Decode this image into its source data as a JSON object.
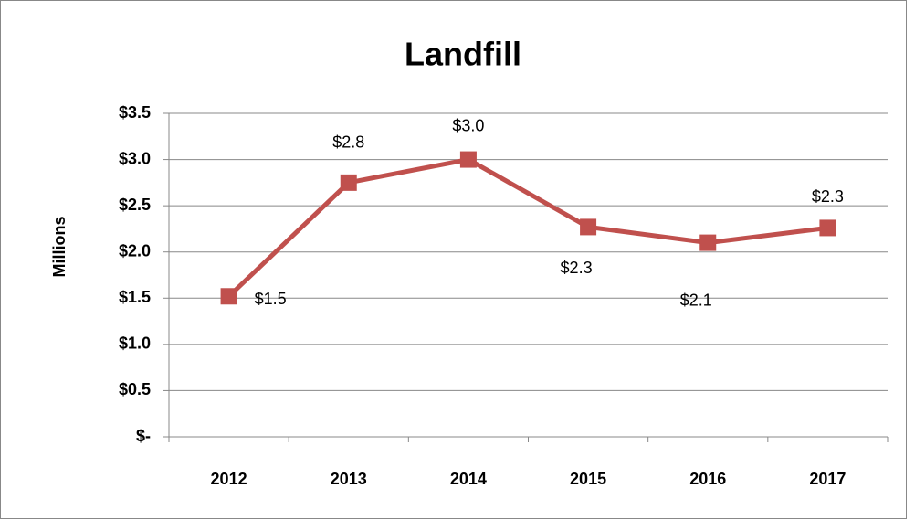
{
  "chart_data": {
    "type": "line",
    "title": "Landfill",
    "y_label": "Millions",
    "categories": [
      "2012",
      "2013",
      "2014",
      "2015",
      "2016",
      "2017"
    ],
    "series": [
      {
        "name": "Landfill",
        "color": "#c0504d",
        "values": [
          1.52,
          2.75,
          3.0,
          2.27,
          2.1,
          2.26
        ],
        "value_labels": [
          "$1.5",
          "$2.8",
          "$3.0",
          "$2.3",
          "$2.1",
          "$2.3"
        ]
      }
    ],
    "ylim": [
      0,
      3.5
    ],
    "yticks": [
      {
        "value": 0,
        "label": "$-"
      },
      {
        "value": 0.5,
        "label": "$0.5"
      },
      {
        "value": 1.0,
        "label": "$1.0"
      },
      {
        "value": 1.5,
        "label": "$1.5"
      },
      {
        "value": 2.0,
        "label": "$2.0"
      },
      {
        "value": 2.5,
        "label": "$2.5"
      },
      {
        "value": 3.0,
        "label": "$3.0"
      },
      {
        "value": 3.5,
        "label": "$3.5"
      }
    ],
    "grid": true
  }
}
